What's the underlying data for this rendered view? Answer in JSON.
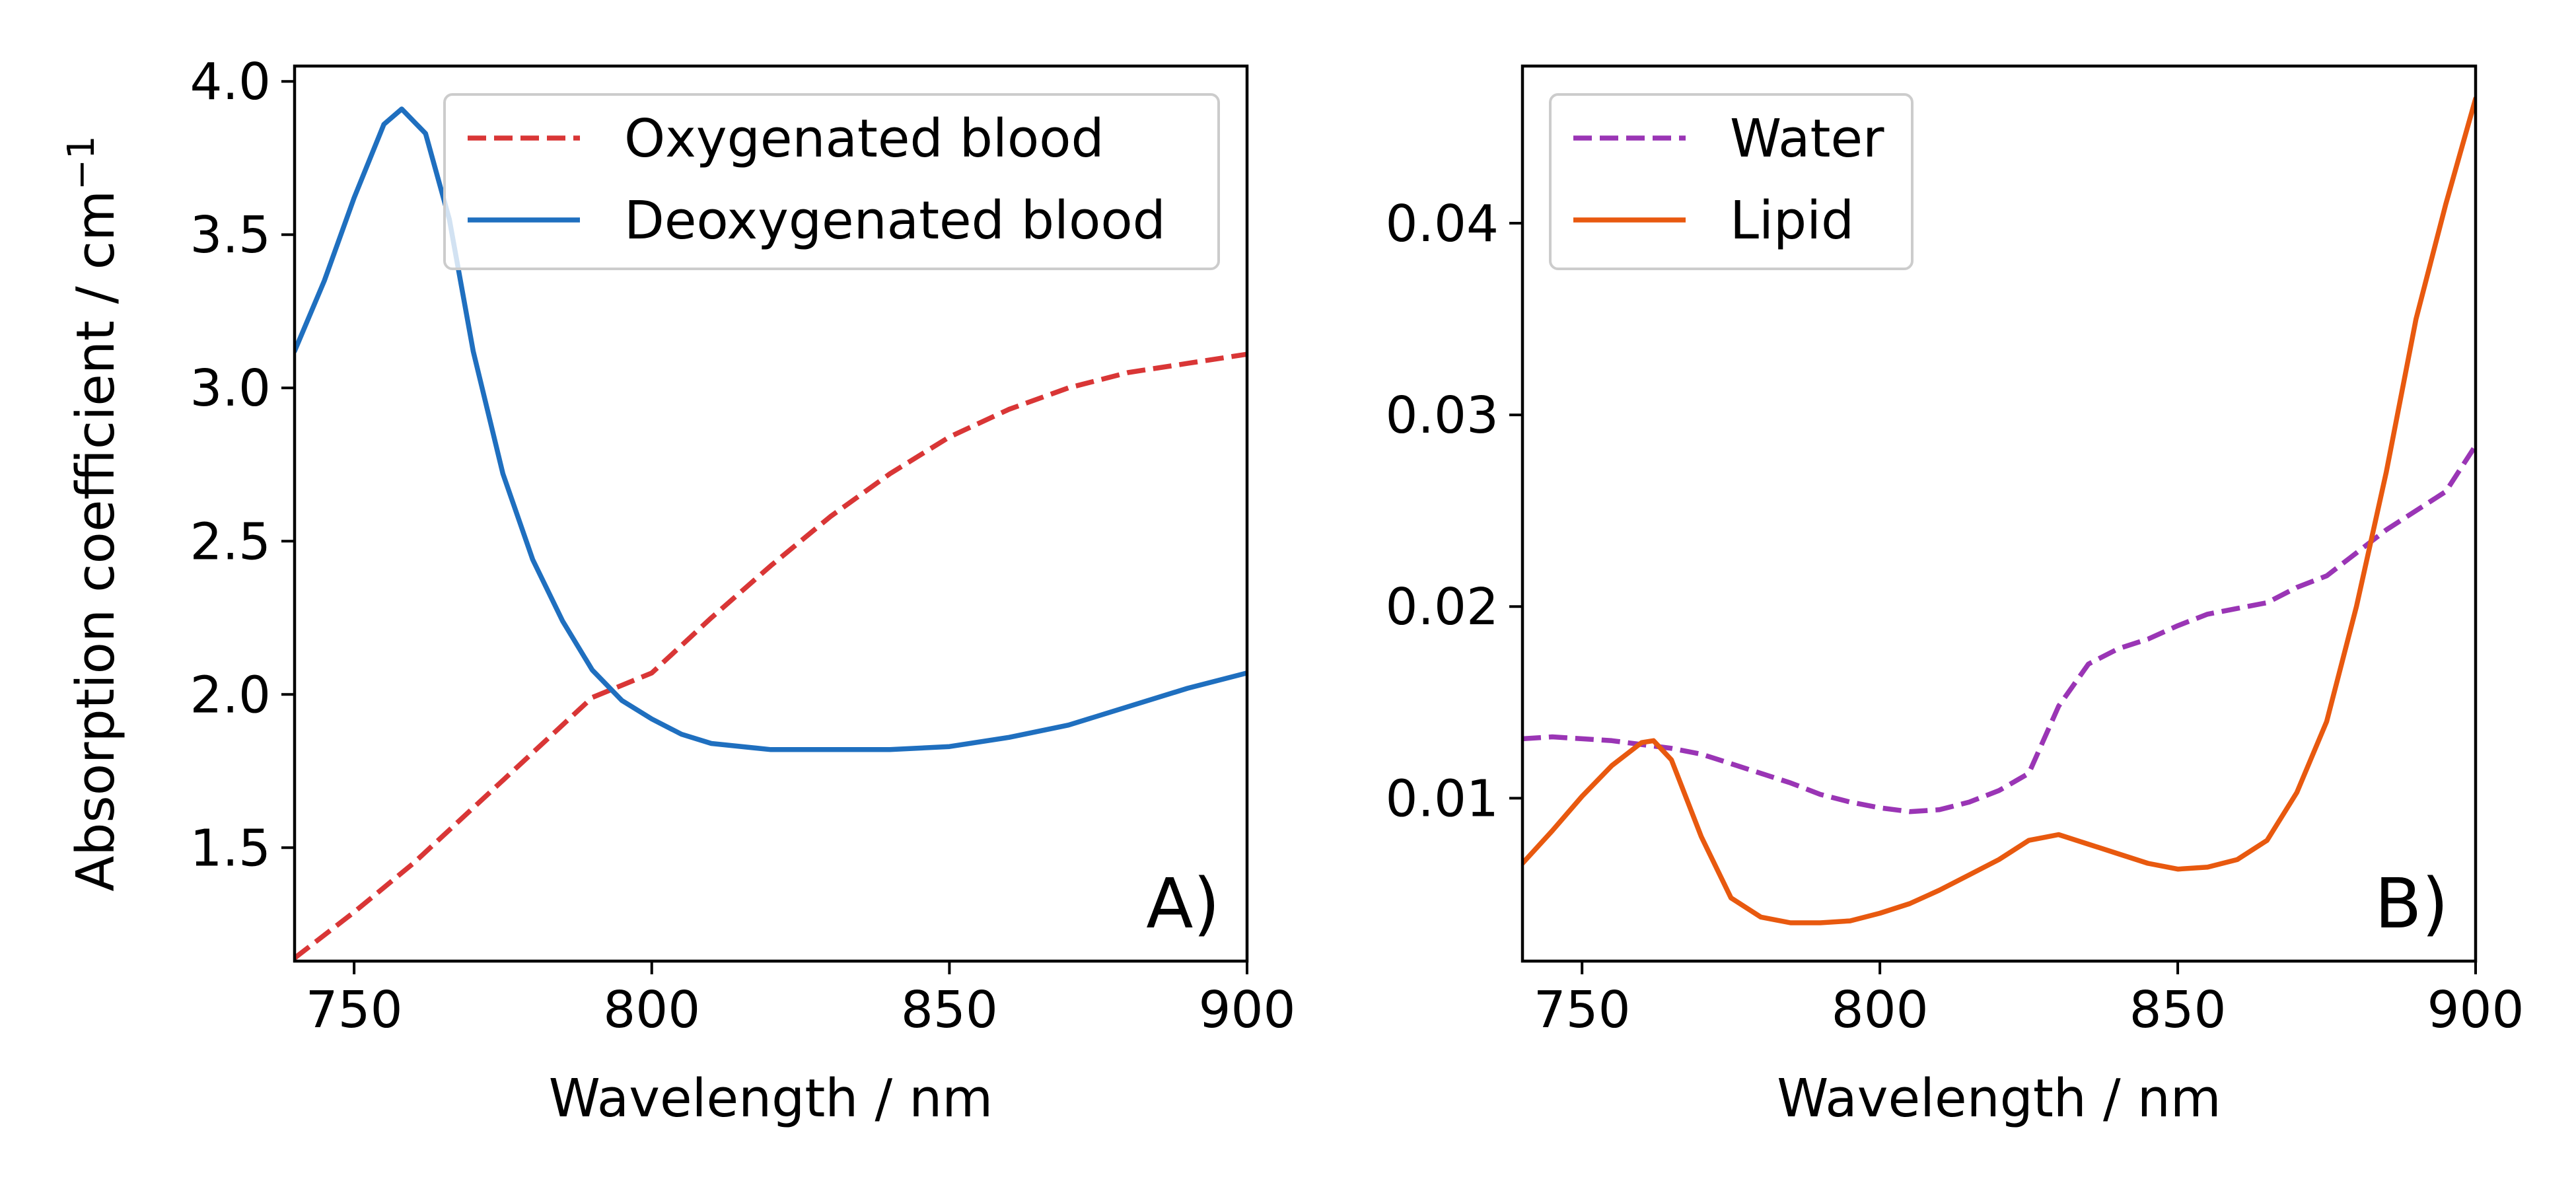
{
  "figure": {
    "panels": [
      "A)",
      "B)"
    ]
  },
  "colors": {
    "oxygenated": "#d93636",
    "deoxygenated": "#1f6fbf",
    "water": "#9a35b5",
    "lipid": "#e8590f"
  },
  "chart_data": [
    {
      "type": "line",
      "panel_label": "A)",
      "title": "",
      "xlabel": "Wavelength / nm",
      "ylabel": "Absorption coefficient / cm",
      "ylabel_superscript": "−1",
      "xlim": [
        740,
        900
      ],
      "ylim": [
        1.13,
        4.05
      ],
      "xticks": [
        750,
        800,
        850,
        900
      ],
      "yticks": [
        1.5,
        2.0,
        2.5,
        3.0,
        3.5,
        4.0
      ],
      "xtick_labels": [
        "750",
        "800",
        "850",
        "900"
      ],
      "ytick_labels": [
        "1.5",
        "2.0",
        "2.5",
        "3.0",
        "3.5",
        "4.0"
      ],
      "grid": false,
      "legend_position": "top-right",
      "series": [
        {
          "name": "Oxygenated blood",
          "style": "dashed",
          "color": "#d93636",
          "x": [
            740,
            750,
            760,
            770,
            780,
            790,
            800,
            810,
            820,
            830,
            840,
            850,
            860,
            870,
            880,
            890,
            900
          ],
          "y": [
            1.14,
            1.29,
            1.45,
            1.63,
            1.81,
            1.99,
            2.07,
            2.25,
            2.42,
            2.58,
            2.72,
            2.84,
            2.93,
            3.0,
            3.05,
            3.08,
            3.11
          ]
        },
        {
          "name": "Deoxygenated blood",
          "style": "solid",
          "color": "#1f6fbf",
          "x": [
            740,
            745,
            750,
            755,
            758,
            762,
            766,
            770,
            775,
            780,
            785,
            790,
            795,
            800,
            805,
            810,
            820,
            830,
            840,
            850,
            860,
            870,
            880,
            890,
            900
          ],
          "y": [
            3.12,
            3.35,
            3.62,
            3.86,
            3.91,
            3.83,
            3.55,
            3.12,
            2.72,
            2.44,
            2.24,
            2.08,
            1.98,
            1.92,
            1.87,
            1.84,
            1.82,
            1.82,
            1.82,
            1.83,
            1.86,
            1.9,
            1.96,
            2.02,
            2.07
          ]
        }
      ]
    },
    {
      "type": "line",
      "panel_label": "B)",
      "title": "",
      "xlabel": "Wavelength / nm",
      "ylabel": "",
      "xlim": [
        740,
        900
      ],
      "ylim": [
        0.0015,
        0.0482
      ],
      "xticks": [
        750,
        800,
        850,
        900
      ],
      "yticks": [
        0.01,
        0.02,
        0.03,
        0.04
      ],
      "xtick_labels": [
        "750",
        "800",
        "850",
        "900"
      ],
      "ytick_labels": [
        "0.01",
        "0.02",
        "0.03",
        "0.04"
      ],
      "grid": false,
      "legend_position": "top-left",
      "series": [
        {
          "name": "Water",
          "style": "dashed",
          "color": "#9a35b5",
          "x": [
            740,
            745,
            750,
            755,
            760,
            765,
            770,
            775,
            780,
            785,
            790,
            795,
            800,
            805,
            810,
            815,
            820,
            825,
            830,
            835,
            840,
            845,
            850,
            855,
            860,
            865,
            870,
            875,
            880,
            885,
            890,
            895,
            900
          ],
          "y": [
            0.0131,
            0.0132,
            0.0131,
            0.013,
            0.0128,
            0.0126,
            0.0123,
            0.0118,
            0.0113,
            0.0108,
            0.0102,
            0.0098,
            0.0095,
            0.0093,
            0.0094,
            0.0098,
            0.0104,
            0.0113,
            0.0148,
            0.017,
            0.0178,
            0.0183,
            0.019,
            0.0196,
            0.0199,
            0.0202,
            0.021,
            0.0216,
            0.0228,
            0.024,
            0.025,
            0.026,
            0.0284
          ]
        },
        {
          "name": "Lipid",
          "style": "solid",
          "color": "#e8590f",
          "x": [
            740,
            745,
            750,
            755,
            760,
            762,
            765,
            770,
            775,
            780,
            785,
            790,
            795,
            800,
            805,
            810,
            815,
            820,
            825,
            830,
            835,
            840,
            845,
            850,
            855,
            860,
            865,
            870,
            875,
            880,
            885,
            890,
            895,
            900
          ],
          "y": [
            0.0066,
            0.0083,
            0.0101,
            0.0117,
            0.0129,
            0.013,
            0.012,
            0.008,
            0.0048,
            0.0038,
            0.0035,
            0.0035,
            0.0036,
            0.004,
            0.0045,
            0.0052,
            0.006,
            0.0068,
            0.0078,
            0.0081,
            0.0076,
            0.0071,
            0.0066,
            0.0063,
            0.0064,
            0.0068,
            0.0078,
            0.0103,
            0.014,
            0.02,
            0.027,
            0.035,
            0.041,
            0.0465
          ]
        }
      ]
    }
  ]
}
